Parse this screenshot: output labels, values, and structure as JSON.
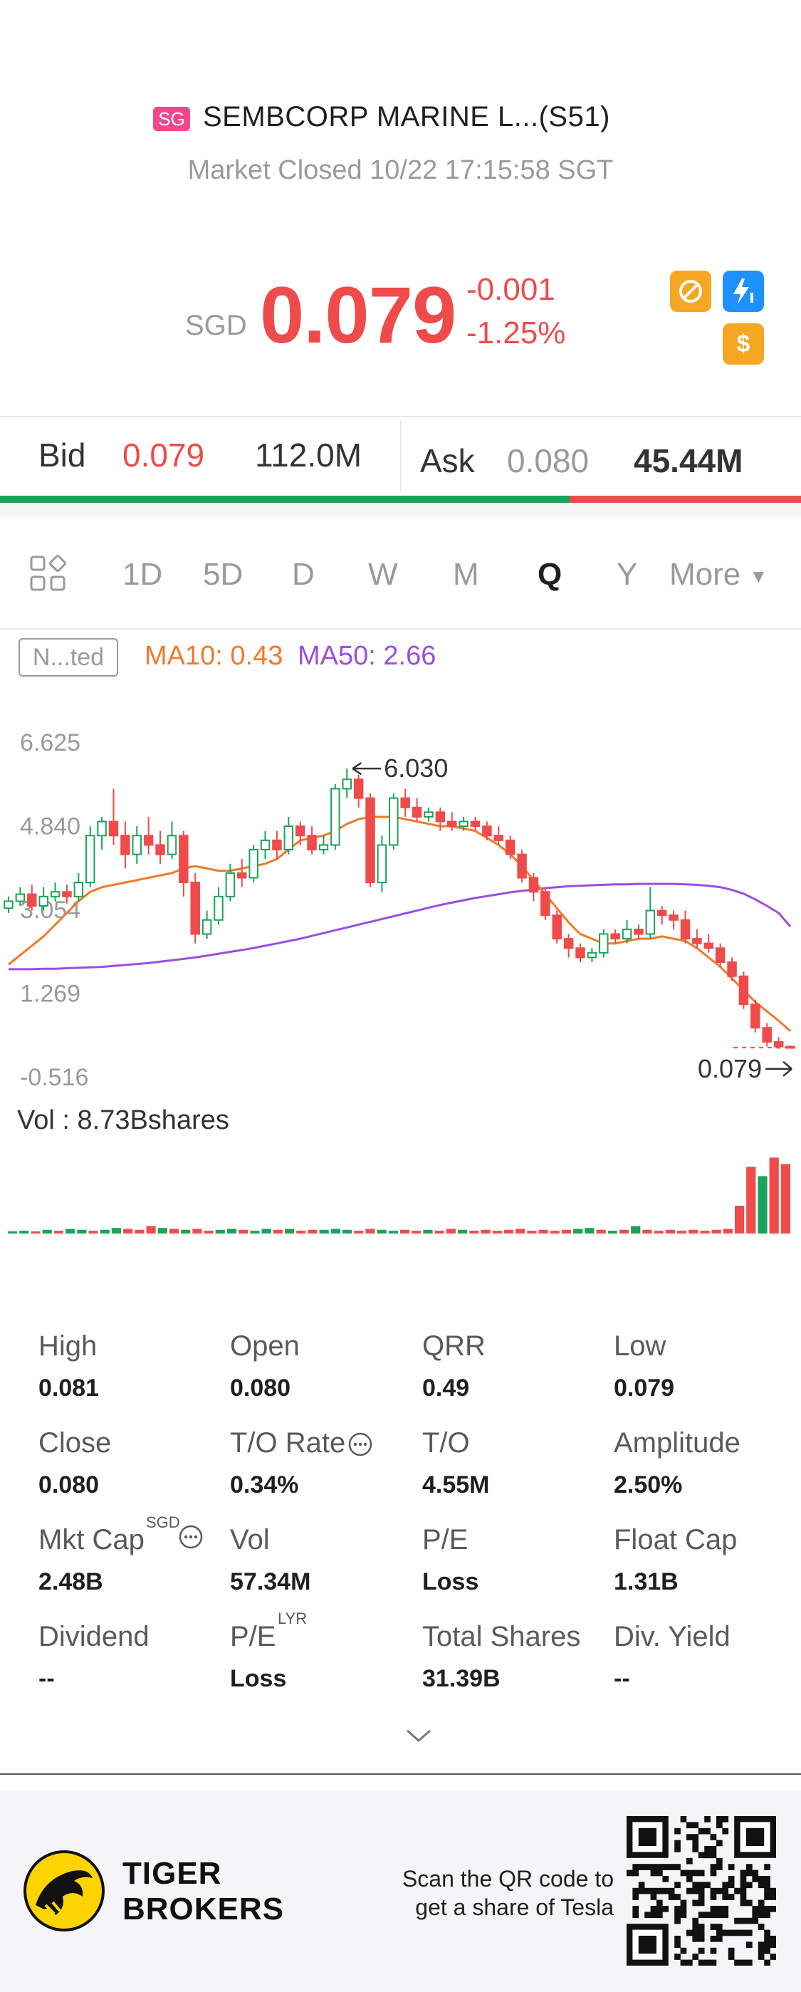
{
  "header": {
    "exchange_badge": "SG",
    "stock_name": "SEMBCORP MARINE L...(S51)",
    "market_status": "Market Closed 10/22 17:15:58 SGT",
    "currency": "SGD",
    "price": "0.079",
    "change": "-0.001",
    "change_pct": "-1.25%",
    "icons": [
      "no-margin-icon",
      "flash-1-icon",
      "dollar-icon"
    ]
  },
  "quote": {
    "bid_label": "Bid",
    "bid_price": "0.079",
    "bid_volume": "112.0M",
    "ask_label": "Ask",
    "ask_price": "0.080",
    "ask_volume": "45.44M",
    "bid_ratio": 0.711
  },
  "tabs": [
    "1D",
    "5D",
    "D",
    "W",
    "M",
    "Q",
    "Y"
  ],
  "tabs_active": "Q",
  "tabs_more": "More",
  "indicators": {
    "box_label": "N...ted",
    "ma10": "MA10: 0.43",
    "ma50": "MA50: 2.66"
  },
  "chart_data": {
    "type": "candlestick",
    "y_ticks": [
      "6.625",
      "4.840",
      "3.054",
      "1.269",
      "-0.516"
    ],
    "ylim": [
      -0.516,
      6.625
    ],
    "high_annotation": "6.030",
    "last_annotation": "0.079",
    "candles": [
      {
        "o": 3.05,
        "c": 3.2,
        "h": 3.3,
        "l": 2.95
      },
      {
        "o": 3.2,
        "c": 3.35,
        "h": 3.5,
        "l": 3.1
      },
      {
        "o": 3.35,
        "c": 3.1,
        "h": 3.55,
        "l": 3.0
      },
      {
        "o": 3.1,
        "c": 3.3,
        "h": 3.5,
        "l": 3.0
      },
      {
        "o": 3.3,
        "c": 3.4,
        "h": 3.6,
        "l": 3.2
      },
      {
        "o": 3.4,
        "c": 3.3,
        "h": 3.55,
        "l": 3.15
      },
      {
        "o": 3.3,
        "c": 3.6,
        "h": 3.8,
        "l": 3.2
      },
      {
        "o": 3.6,
        "c": 4.6,
        "h": 4.8,
        "l": 3.5
      },
      {
        "o": 4.6,
        "c": 4.9,
        "h": 5.0,
        "l": 4.3
      },
      {
        "o": 4.9,
        "c": 4.6,
        "h": 5.6,
        "l": 4.4
      },
      {
        "o": 4.6,
        "c": 4.2,
        "h": 4.9,
        "l": 3.9
      },
      {
        "o": 4.2,
        "c": 4.6,
        "h": 4.8,
        "l": 4.0
      },
      {
        "o": 4.6,
        "c": 4.4,
        "h": 5.0,
        "l": 4.2
      },
      {
        "o": 4.4,
        "c": 4.2,
        "h": 4.7,
        "l": 4.0
      },
      {
        "o": 4.2,
        "c": 4.6,
        "h": 4.9,
        "l": 4.1
      },
      {
        "o": 4.6,
        "c": 3.6,
        "h": 4.7,
        "l": 3.3
      },
      {
        "o": 3.6,
        "c": 2.5,
        "h": 3.8,
        "l": 2.3
      },
      {
        "o": 2.5,
        "c": 2.8,
        "h": 3.0,
        "l": 2.4
      },
      {
        "o": 2.8,
        "c": 3.3,
        "h": 3.5,
        "l": 2.7
      },
      {
        "o": 3.3,
        "c": 3.8,
        "h": 4.0,
        "l": 3.2
      },
      {
        "o": 3.8,
        "c": 3.7,
        "h": 4.1,
        "l": 3.5
      },
      {
        "o": 3.7,
        "c": 4.3,
        "h": 4.4,
        "l": 3.6
      },
      {
        "o": 4.3,
        "c": 4.5,
        "h": 4.7,
        "l": 4.1
      },
      {
        "o": 4.5,
        "c": 4.3,
        "h": 4.7,
        "l": 4.1
      },
      {
        "o": 4.3,
        "c": 4.8,
        "h": 5.0,
        "l": 4.2
      },
      {
        "o": 4.8,
        "c": 4.6,
        "h": 4.9,
        "l": 4.4
      },
      {
        "o": 4.6,
        "c": 4.3,
        "h": 4.8,
        "l": 4.2
      },
      {
        "o": 4.3,
        "c": 4.4,
        "h": 4.6,
        "l": 4.2
      },
      {
        "o": 4.4,
        "c": 5.6,
        "h": 5.7,
        "l": 4.3
      },
      {
        "o": 5.6,
        "c": 5.8,
        "h": 6.03,
        "l": 5.4
      },
      {
        "o": 5.8,
        "c": 5.4,
        "h": 5.9,
        "l": 5.2
      },
      {
        "o": 5.4,
        "c": 3.6,
        "h": 5.5,
        "l": 3.5
      },
      {
        "o": 3.6,
        "c": 4.4,
        "h": 4.6,
        "l": 3.4
      },
      {
        "o": 4.4,
        "c": 5.4,
        "h": 5.5,
        "l": 4.3
      },
      {
        "o": 5.4,
        "c": 5.2,
        "h": 5.6,
        "l": 5.0
      },
      {
        "o": 5.2,
        "c": 5.0,
        "h": 5.4,
        "l": 4.9
      },
      {
        "o": 5.0,
        "c": 5.1,
        "h": 5.2,
        "l": 4.9
      },
      {
        "o": 5.1,
        "c": 4.9,
        "h": 5.2,
        "l": 4.7
      },
      {
        "o": 4.9,
        "c": 4.8,
        "h": 5.1,
        "l": 4.7
      },
      {
        "o": 4.8,
        "c": 4.9,
        "h": 5.0,
        "l": 4.7
      },
      {
        "o": 4.9,
        "c": 4.8,
        "h": 5.0,
        "l": 4.7
      },
      {
        "o": 4.8,
        "c": 4.6,
        "h": 4.9,
        "l": 4.5
      },
      {
        "o": 4.6,
        "c": 4.5,
        "h": 4.8,
        "l": 4.4
      },
      {
        "o": 4.5,
        "c": 4.2,
        "h": 4.6,
        "l": 4.1
      },
      {
        "o": 4.2,
        "c": 3.7,
        "h": 4.3,
        "l": 3.6
      },
      {
        "o": 3.7,
        "c": 3.4,
        "h": 3.8,
        "l": 3.2
      },
      {
        "o": 3.4,
        "c": 2.9,
        "h": 3.5,
        "l": 2.8
      },
      {
        "o": 2.9,
        "c": 2.4,
        "h": 3.0,
        "l": 2.3
      },
      {
        "o": 2.4,
        "c": 2.2,
        "h": 2.5,
        "l": 2.0
      },
      {
        "o": 2.2,
        "c": 2.0,
        "h": 2.3,
        "l": 1.9
      },
      {
        "o": 2.0,
        "c": 2.1,
        "h": 2.2,
        "l": 1.9
      },
      {
        "o": 2.1,
        "c": 2.5,
        "h": 2.6,
        "l": 2.0
      },
      {
        "o": 2.5,
        "c": 2.4,
        "h": 2.6,
        "l": 2.3
      },
      {
        "o": 2.4,
        "c": 2.6,
        "h": 2.8,
        "l": 2.3
      },
      {
        "o": 2.6,
        "c": 2.5,
        "h": 2.7,
        "l": 2.4
      },
      {
        "o": 2.5,
        "c": 3.0,
        "h": 3.5,
        "l": 2.4
      },
      {
        "o": 3.0,
        "c": 2.9,
        "h": 3.1,
        "l": 2.7
      },
      {
        "o": 2.9,
        "c": 2.8,
        "h": 3.0,
        "l": 2.6
      },
      {
        "o": 2.8,
        "c": 2.4,
        "h": 3.0,
        "l": 2.3
      },
      {
        "o": 2.4,
        "c": 2.3,
        "h": 2.6,
        "l": 2.2
      },
      {
        "o": 2.3,
        "c": 2.2,
        "h": 2.5,
        "l": 2.1
      },
      {
        "o": 2.2,
        "c": 1.9,
        "h": 2.3,
        "l": 1.8
      },
      {
        "o": 1.9,
        "c": 1.6,
        "h": 2.0,
        "l": 1.5
      },
      {
        "o": 1.6,
        "c": 1.0,
        "h": 1.7,
        "l": 0.9
      },
      {
        "o": 1.0,
        "c": 0.5,
        "h": 1.1,
        "l": 0.4
      },
      {
        "o": 0.5,
        "c": 0.2,
        "h": 0.6,
        "l": 0.1
      },
      {
        "o": 0.2,
        "c": 0.1,
        "h": 0.3,
        "l": 0.05
      },
      {
        "o": 0.1,
        "c": 0.079,
        "h": 0.12,
        "l": 0.06
      }
    ],
    "ma10": [
      1.85,
      2.05,
      2.25,
      2.45,
      2.7,
      2.95,
      3.2,
      3.4,
      3.5,
      3.55,
      3.6,
      3.65,
      3.7,
      3.75,
      3.8,
      3.9,
      3.95,
      3.9,
      3.85,
      3.85,
      3.9,
      3.95,
      4.0,
      4.1,
      4.3,
      4.5,
      4.55,
      4.6,
      4.7,
      4.85,
      4.95,
      5.0,
      5.0,
      5.0,
      4.95,
      4.9,
      4.85,
      4.8,
      4.8,
      4.75,
      4.7,
      4.55,
      4.4,
      4.2,
      3.95,
      3.65,
      3.35,
      3.05,
      2.75,
      2.5,
      2.4,
      2.3,
      2.3,
      2.35,
      2.4,
      2.4,
      2.45,
      2.4,
      2.35,
      2.2,
      2.0,
      1.8,
      1.55,
      1.3,
      1.05,
      0.85,
      0.65,
      0.43
    ],
    "ma50": [
      1.75,
      1.75,
      1.75,
      1.76,
      1.76,
      1.77,
      1.78,
      1.79,
      1.8,
      1.82,
      1.84,
      1.86,
      1.88,
      1.91,
      1.94,
      1.97,
      2.0,
      2.04,
      2.08,
      2.12,
      2.16,
      2.2,
      2.25,
      2.3,
      2.35,
      2.4,
      2.46,
      2.52,
      2.58,
      2.64,
      2.7,
      2.76,
      2.82,
      2.88,
      2.94,
      3.0,
      3.06,
      3.12,
      3.17,
      3.22,
      3.27,
      3.31,
      3.35,
      3.39,
      3.42,
      3.45,
      3.48,
      3.5,
      3.52,
      3.53,
      3.54,
      3.55,
      3.56,
      3.56,
      3.57,
      3.57,
      3.57,
      3.57,
      3.56,
      3.55,
      3.53,
      3.5,
      3.44,
      3.36,
      3.24,
      3.1,
      2.95,
      2.66
    ]
  },
  "volume": {
    "label": "Vol",
    "value": ": 8.73Bshares",
    "bars": [
      0.02,
      0.03,
      0.02,
      0.04,
      0.03,
      0.05,
      0.04,
      0.03,
      0.04,
      0.06,
      0.05,
      0.04,
      0.08,
      0.06,
      0.05,
      0.04,
      0.05,
      0.03,
      0.04,
      0.05,
      0.04,
      0.03,
      0.05,
      0.04,
      0.05,
      0.03,
      0.04,
      0.04,
      0.05,
      0.04,
      0.03,
      0.05,
      0.04,
      0.03,
      0.04,
      0.03,
      0.04,
      0.03,
      0.05,
      0.04,
      0.03,
      0.04,
      0.03,
      0.04,
      0.05,
      0.03,
      0.04,
      0.03,
      0.04,
      0.05,
      0.06,
      0.04,
      0.03,
      0.04,
      0.08,
      0.04,
      0.03,
      0.04,
      0.03,
      0.04,
      0.03,
      0.04,
      0.05,
      0.3,
      0.72,
      0.62,
      0.82,
      0.75
    ],
    "bar_up": [
      1,
      1,
      0,
      1,
      0,
      1,
      1,
      0,
      1,
      1,
      0,
      0,
      0,
      1,
      0,
      1,
      0,
      0,
      1,
      1,
      0,
      1,
      1,
      0,
      1,
      0,
      0,
      1,
      1,
      1,
      0,
      0,
      1,
      1,
      0,
      0,
      1,
      0,
      0,
      1,
      0,
      0,
      0,
      0,
      0,
      0,
      0,
      0,
      0,
      1,
      1,
      0,
      1,
      0,
      1,
      0,
      0,
      0,
      0,
      0,
      0,
      0,
      0,
      0,
      0,
      1,
      0,
      0
    ]
  },
  "stats": [
    {
      "label": "High",
      "value": "0.081"
    },
    {
      "label": "Open",
      "value": "0.080"
    },
    {
      "label": "QRR",
      "value": "0.49"
    },
    {
      "label": "Low",
      "value": "0.079"
    },
    {
      "label": "Close",
      "value": "0.080"
    },
    {
      "label": "T/O Rate",
      "value": "0.34%"
    },
    {
      "label": "T/O",
      "value": "4.55M"
    },
    {
      "label": "Amplitude",
      "value": "2.50%"
    },
    {
      "label": "Mkt Cap",
      "value": "2.48B"
    },
    {
      "label": "Vol",
      "value": "57.34M"
    },
    {
      "label": "P/E",
      "value": "Loss"
    },
    {
      "label": "Float Cap",
      "value": "1.31B"
    },
    {
      "label": "Dividend",
      "value": "--"
    },
    {
      "label": "P/E",
      "value": "Loss"
    },
    {
      "label": "Total Shares",
      "value": "31.39B"
    },
    {
      "label": "Div. Yield",
      "value": "--"
    }
  ],
  "stats_sup": {
    "mkt_cap": "SGD",
    "pe_lyr": "LYR"
  },
  "footer": {
    "brand_line1": "TIGER",
    "brand_line2": "BROKERS",
    "qr_line1": "Scan the QR code to",
    "qr_line2": "get a share of Tesla"
  },
  "colors": {
    "up": "#1aa35a",
    "down": "#ef4b4b",
    "ma10": "#f07a2a",
    "ma50": "#9a4ee0",
    "accent_orange": "#f5a623",
    "accent_blue": "#1e90ff"
  }
}
